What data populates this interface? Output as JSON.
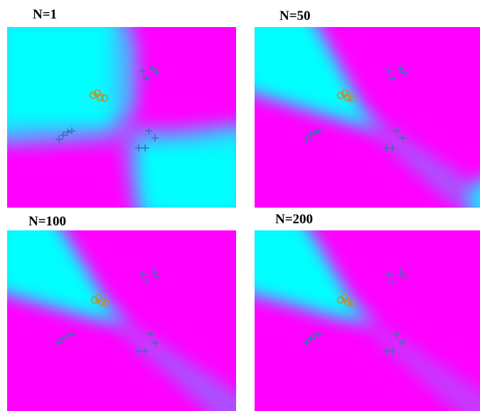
{
  "panels": [
    {
      "title": "N=1",
      "regime": "split"
    },
    {
      "title": "N=50",
      "regime": "wedge"
    },
    {
      "title": "N=100",
      "regime": "wedge"
    },
    {
      "title": "N=200",
      "regime": "wedge"
    }
  ],
  "colors": {
    "positive_region": "#00ffff",
    "negative_region": "#ff00ff",
    "plus_marker": "#3a6fb0",
    "circle_marker": "#d08020"
  },
  "markers": {
    "plus_symbol": "+",
    "circle_symbol": "o"
  }
}
